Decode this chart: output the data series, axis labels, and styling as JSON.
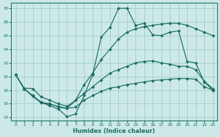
{
  "xlabel": "Humidex (Indice chaleur)",
  "xlim": [
    -0.5,
    23.5
  ],
  "ylim": [
    13.5,
    30.8
  ],
  "xticks": [
    0,
    1,
    2,
    3,
    4,
    5,
    6,
    7,
    8,
    9,
    10,
    11,
    12,
    13,
    14,
    15,
    16,
    17,
    18,
    19,
    20,
    21,
    22,
    23
  ],
  "yticks": [
    14,
    16,
    18,
    20,
    22,
    24,
    26,
    28,
    30
  ],
  "bg_color": "#cce9e8",
  "grid_color": "#a0cac8",
  "line_color": "#1a6e64",
  "line1_y": [
    20.3,
    18.2,
    17.1,
    16.2,
    15.7,
    15.2,
    14.1,
    14.5,
    17.2,
    20.3,
    25.8,
    27.2,
    30.0,
    30.0,
    27.5,
    27.8,
    26.1,
    26.0,
    26.5,
    26.7,
    22.2,
    22.0,
    19.2,
    18.0
  ],
  "line2_y": [
    20.3,
    18.3,
    18.2,
    17.0,
    16.5,
    16.0,
    15.6,
    16.5,
    18.8,
    20.5,
    22.5,
    24.0,
    25.5,
    26.5,
    27.0,
    27.3,
    27.5,
    27.7,
    27.8,
    27.8,
    27.5,
    27.0,
    26.5,
    26.0
  ],
  "line3_y": [
    20.3,
    18.2,
    17.2,
    16.2,
    16.0,
    15.5,
    15.3,
    16.5,
    17.5,
    18.5,
    19.5,
    20.5,
    21.0,
    21.5,
    22.0,
    22.2,
    22.3,
    22.0,
    21.8,
    21.5,
    21.5,
    21.0,
    19.3,
    18.2
  ],
  "line4_y": [
    20.3,
    18.2,
    17.1,
    16.1,
    15.9,
    15.6,
    15.3,
    15.5,
    16.5,
    17.2,
    17.8,
    18.3,
    18.5,
    18.8,
    19.0,
    19.2,
    19.4,
    19.5,
    19.6,
    19.7,
    19.7,
    19.6,
    18.5,
    18.0
  ]
}
